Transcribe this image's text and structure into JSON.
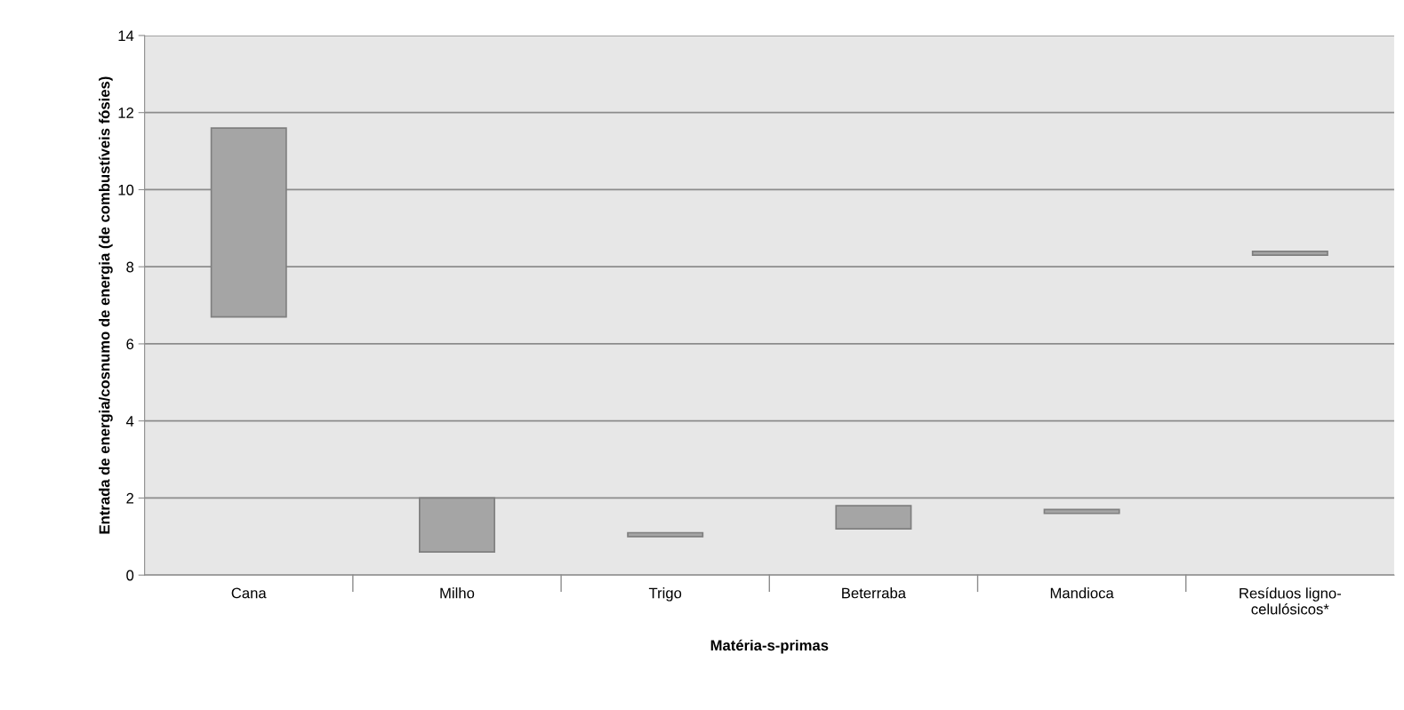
{
  "chart_data": {
    "type": "bar",
    "xlabel": "Matéria-s-primas",
    "ylabel": "Entrada de energia/cosnumo de energia (de combustíveis fósies)",
    "categories": [
      "Cana",
      "Milho",
      "Trigo",
      "Beterraba",
      "Mandioca",
      "Resíduos ligno-\ncelulósicos*"
    ],
    "base": [
      6.7,
      0.6,
      1.0,
      1.2,
      1.6,
      8.3
    ],
    "values": [
      4.9,
      1.4,
      0.1,
      0.6,
      0.1,
      0.1
    ],
    "color": "#a5a5a5",
    "ylim": [
      0,
      14
    ],
    "yticks": [
      0,
      2,
      4,
      6,
      8,
      10,
      12,
      14
    ],
    "grid": "y",
    "legend": false
  }
}
